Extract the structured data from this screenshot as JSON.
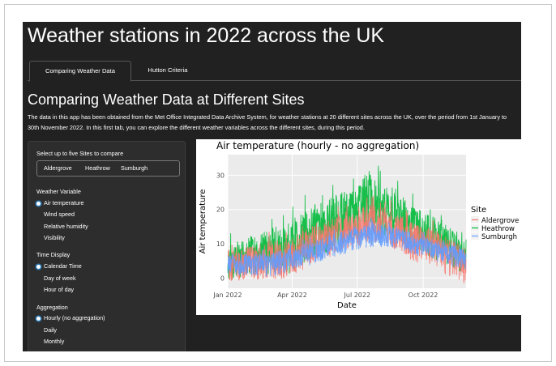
{
  "app": {
    "title": "Weather stations in 2022 across the UK",
    "tabs": [
      {
        "label": "Comparing Weather Data",
        "active": true
      },
      {
        "label": "Hutton Criteria",
        "active": false
      }
    ],
    "heading": "Comparing Weather Data at Different Sites",
    "description": "The data in this app has been obtained from the Met Office Integrated Data Archive System, for weather stations at 20 different sites across the UK, over the period from 1st January to 30th November 2022. In this first tab, you can explore the different weather variables across the different sites, during this period."
  },
  "sidebar": {
    "sites_label": "Select up to five Sites to compare",
    "selected_sites": [
      "Aldergrove",
      "Heathrow",
      "Sumburgh"
    ],
    "weather_variable": {
      "label": "Weather Variable",
      "options": [
        "Air temperature",
        "Wind speed",
        "Relative humidity",
        "Visibility"
      ],
      "selected": "Air temperature"
    },
    "time_display": {
      "label": "Time Display",
      "options": [
        "Calendar Time",
        "Day of week",
        "Hour of day"
      ],
      "selected": "Calendar Time"
    },
    "aggregation": {
      "label": "Aggregation",
      "options": [
        "Hourly (no aggregation)",
        "Daily",
        "Monthly"
      ],
      "selected": "Hourly (no aggregation)"
    }
  },
  "chart_data": {
    "type": "line",
    "title": "Air temperature (hourly - no aggregation)",
    "xlabel": "Date",
    "ylabel": "Air temperature",
    "x_ticks": [
      "Jan 2022",
      "Apr 2022",
      "Jul 2022",
      "Oct 2022"
    ],
    "y_ticks": [
      0,
      10,
      20,
      30
    ],
    "xlim": [
      "2022-01-01",
      "2022-11-30"
    ],
    "ylim": [
      -3,
      36
    ],
    "grid": true,
    "legend": {
      "title": "Site",
      "placement": "right"
    },
    "x": [
      "2022-01-01",
      "2022-01-16",
      "2022-02-01",
      "2022-02-16",
      "2022-03-01",
      "2022-03-16",
      "2022-04-01",
      "2022-04-16",
      "2022-05-01",
      "2022-05-16",
      "2022-06-01",
      "2022-06-16",
      "2022-07-01",
      "2022-07-16",
      "2022-08-01",
      "2022-08-16",
      "2022-09-01",
      "2022-09-16",
      "2022-10-01",
      "2022-10-16",
      "2022-11-01",
      "2022-11-16",
      "2022-11-30"
    ],
    "series": [
      {
        "name": "Aldergrove",
        "color": "#F8766D",
        "values": [
          5,
          4,
          6,
          5,
          7,
          6,
          7,
          9,
          11,
          12,
          13,
          14,
          15,
          16,
          16,
          15,
          14,
          12,
          11,
          10,
          8,
          7,
          5
        ],
        "min": [
          -2,
          -1,
          0,
          -1,
          0,
          -1,
          1,
          2,
          4,
          5,
          7,
          8,
          9,
          9,
          10,
          9,
          7,
          5,
          4,
          3,
          1,
          0,
          -2
        ],
        "max": [
          11,
          10,
          12,
          11,
          14,
          13,
          15,
          17,
          19,
          20,
          21,
          22,
          24,
          27,
          25,
          23,
          21,
          19,
          18,
          17,
          15,
          13,
          11
        ]
      },
      {
        "name": "Heathrow",
        "color": "#00BA38",
        "values": [
          6,
          6,
          8,
          8,
          9,
          10,
          10,
          12,
          15,
          16,
          18,
          19,
          20,
          23,
          22,
          21,
          18,
          16,
          14,
          13,
          12,
          10,
          7
        ],
        "min": [
          -1,
          0,
          1,
          1,
          1,
          2,
          1,
          3,
          6,
          7,
          9,
          10,
          11,
          13,
          12,
          12,
          10,
          8,
          6,
          5,
          4,
          2,
          0
        ],
        "max": [
          13,
          14,
          15,
          16,
          18,
          20,
          22,
          24,
          26,
          27,
          29,
          30,
          33,
          36,
          33,
          31,
          28,
          25,
          23,
          21,
          18,
          16,
          13
        ]
      },
      {
        "name": "Sumburgh",
        "color": "#619CFF",
        "values": [
          5,
          5,
          5,
          5,
          5,
          5,
          6,
          7,
          8,
          9,
          10,
          11,
          12,
          13,
          13,
          13,
          12,
          11,
          10,
          9,
          8,
          7,
          6
        ],
        "min": [
          1,
          1,
          0,
          1,
          0,
          1,
          2,
          3,
          4,
          5,
          6,
          7,
          8,
          9,
          9,
          9,
          8,
          7,
          6,
          5,
          4,
          3,
          2
        ],
        "max": [
          8,
          9,
          8,
          9,
          9,
          10,
          11,
          12,
          13,
          14,
          15,
          16,
          17,
          18,
          18,
          17,
          16,
          15,
          14,
          13,
          12,
          11,
          9
        ]
      }
    ]
  }
}
